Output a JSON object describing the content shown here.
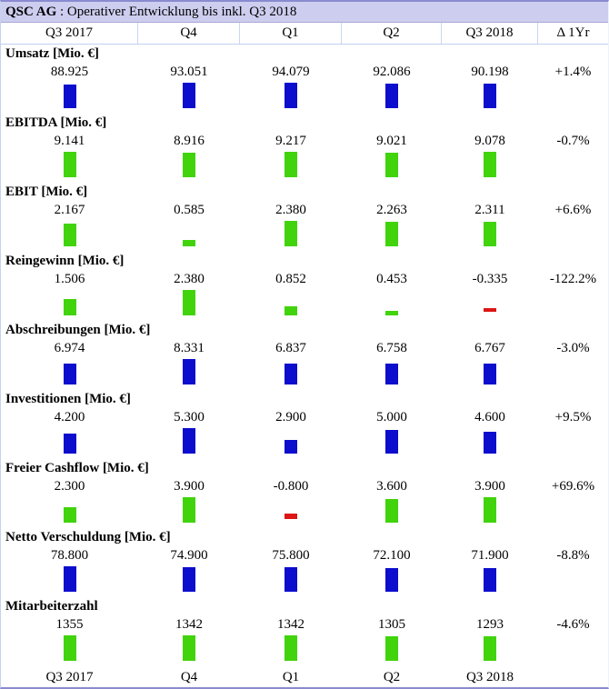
{
  "title": {
    "company": "QSC AG",
    "rest": " : Operativer Entwicklung bis inkl. Q3 2018"
  },
  "header": {
    "cols": [
      "Q3 2017",
      "Q4",
      "Q1",
      "Q2",
      "Q3 2018"
    ],
    "delta": "Δ 1Yr"
  },
  "footer": {
    "cols": [
      "Q3 2017",
      "Q4",
      "Q1",
      "Q2",
      "Q3 2018"
    ]
  },
  "colors": {
    "blue": "#0d0dcd",
    "green": "#41d30b",
    "red": "#dd1515",
    "title_bg": "#cdcdef",
    "grid_line": "#c2d0ee"
  },
  "chart_data": {
    "type": "bar",
    "title": "QSC AG : Operativer Entwicklung bis inkl. Q3 2018",
    "categories": [
      "Q3 2017",
      "Q4",
      "Q1",
      "Q2",
      "Q3 2018"
    ],
    "legend_position": "none",
    "grid": false,
    "series": [
      {
        "name": "Umsatz",
        "unit": "[Mio. €]",
        "color": "blue",
        "values": [
          88.925,
          93.051,
          94.079,
          92.086,
          90.198
        ],
        "values_display": [
          "88.925",
          "93.051",
          "94.079",
          "92.086",
          "90.198"
        ],
        "delta_1yr": "+1.4%"
      },
      {
        "name": "EBITDA",
        "unit": "[Mio. €]",
        "color": "green",
        "values": [
          9.141,
          8.916,
          9.217,
          9.021,
          9.078
        ],
        "values_display": [
          "9.141",
          "8.916",
          "9.217",
          "9.021",
          "9.078"
        ],
        "delta_1yr": "-0.7%"
      },
      {
        "name": "EBIT",
        "unit": "[Mio. €]",
        "color": "green",
        "values": [
          2.167,
          0.585,
          2.38,
          2.263,
          2.311
        ],
        "values_display": [
          "2.167",
          "0.585",
          "2.380",
          "2.263",
          "2.311"
        ],
        "delta_1yr": "+6.6%"
      },
      {
        "name": "Reingewinn",
        "unit": "[Mio. €]",
        "color": "green",
        "values": [
          1.506,
          2.38,
          0.852,
          0.453,
          -0.335
        ],
        "values_display": [
          "1.506",
          "2.380",
          "0.852",
          "0.453",
          "-0.335"
        ],
        "delta_1yr": "-122.2%"
      },
      {
        "name": "Abschreibungen",
        "unit": "[Mio. €]",
        "color": "blue",
        "values": [
          6.974,
          8.331,
          6.837,
          6.758,
          6.767
        ],
        "values_display": [
          "6.974",
          "8.331",
          "6.837",
          "6.758",
          "6.767"
        ],
        "delta_1yr": "-3.0%"
      },
      {
        "name": "Investitionen",
        "unit": "[Mio. €]",
        "color": "blue",
        "values": [
          4.2,
          5.3,
          2.9,
          5.0,
          4.6
        ],
        "values_display": [
          "4.200",
          "5.300",
          "2.900",
          "5.000",
          "4.600"
        ],
        "delta_1yr": "+9.5%"
      },
      {
        "name": "Freier Cashflow",
        "unit": "[Mio. €]",
        "color": "green",
        "values": [
          2.3,
          3.9,
          -0.8,
          3.6,
          3.9
        ],
        "values_display": [
          "2.300",
          "3.900",
          "-0.800",
          "3.600",
          "3.900"
        ],
        "delta_1yr": "+69.6%"
      },
      {
        "name": "Netto Verschuldung",
        "unit": "[Mio. €]",
        "color": "blue",
        "values": [
          78.8,
          74.9,
          75.8,
          72.1,
          71.9
        ],
        "values_display": [
          "78.800",
          "74.900",
          "75.800",
          "72.100",
          "71.900"
        ],
        "delta_1yr": "-8.8%"
      },
      {
        "name": "Mitarbeiterzahl",
        "unit": null,
        "color": "green",
        "values": [
          1355,
          1342,
          1342,
          1305,
          1293
        ],
        "values_display": [
          "1355",
          "1342",
          "1342",
          "1305",
          "1293"
        ],
        "delta_1yr": "-4.6%"
      }
    ]
  }
}
